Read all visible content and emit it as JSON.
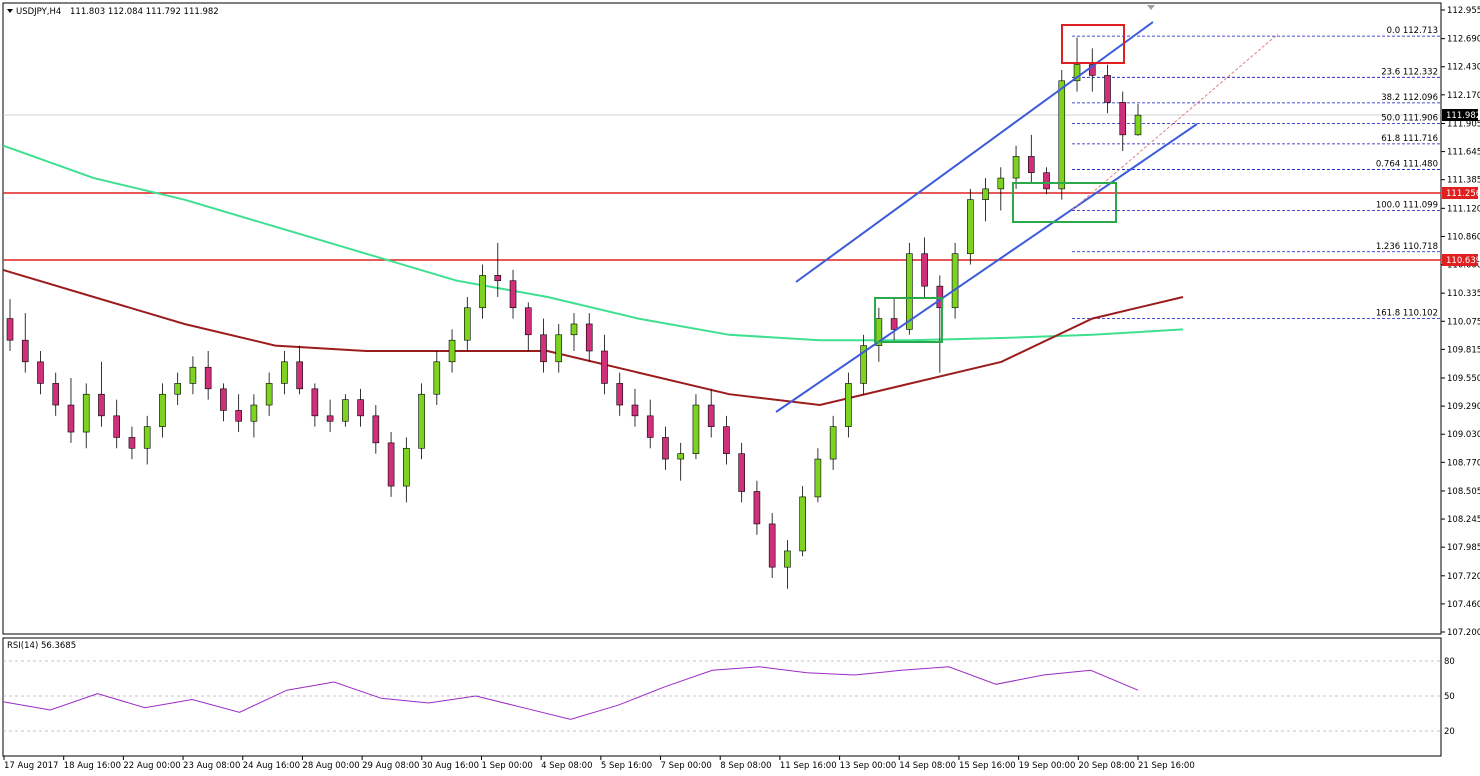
{
  "header": {
    "symbol": "USDJPY,H4",
    "ohlc": "111.803 112.084 111.792 111.982"
  },
  "rsi": {
    "label": "RSI(14) 56.3685",
    "levels": [
      20,
      50,
      80
    ],
    "tick_labels": [
      "80",
      "50",
      "20"
    ]
  },
  "price_scale": {
    "ticks": [
      "112.955",
      "112.690",
      "112.430",
      "112.170",
      "111.905",
      "111.645",
      "111.385",
      "111.120",
      "110.860",
      "110.600",
      "110.335",
      "110.075",
      "109.815",
      "109.550",
      "109.290",
      "109.030",
      "108.770",
      "108.505",
      "108.245",
      "107.985",
      "107.720",
      "107.460",
      "107.200"
    ],
    "current_price": "111.982",
    "level_labels": [
      "111.256",
      "110.639"
    ]
  },
  "time_labels": [
    "17 Aug 2017",
    "18 Aug 16:00",
    "22 Aug 00:00",
    "23 Aug 08:00",
    "24 Aug 16:00",
    "28 Aug 00:00",
    "29 Aug 08:00",
    "30 Aug 16:00",
    "1 Sep 00:00",
    "4 Sep 08:00",
    "5 Sep 16:00",
    "7 Sep 00:00",
    "8 Sep 08:00",
    "11 Sep 16:00",
    "13 Sep 00:00",
    "14 Sep 08:00",
    "15 Sep 16:00",
    "19 Sep 00:00",
    "20 Sep 08:00",
    "21 Sep 16:00"
  ],
  "fibonacci": [
    {
      "label": "0.0 112.713",
      "price": 112.713
    },
    {
      "label": "23.6 112.332",
      "price": 112.332
    },
    {
      "label": "38.2 112.096",
      "price": 112.096
    },
    {
      "label": "50.0 111.906",
      "price": 111.906
    },
    {
      "label": "61.8 111.716",
      "price": 111.716
    },
    {
      "label": "0.764 111.480",
      "price": 111.48
    },
    {
      "label": "100.0 111.099",
      "price": 111.099
    },
    {
      "label": "1.236 110.718",
      "price": 110.718
    },
    {
      "label": "161.8 110.102",
      "price": 110.102
    }
  ],
  "colors": {
    "bull": "#7ed321",
    "bear": "#d0307a",
    "ma_fast": "#9b1c1c",
    "ma_slow": "#3ee08f",
    "channel": "#3b5bdb",
    "horizontal_level": "#e02020",
    "fib": "#1010c0",
    "rsi_line": "#9b2bc4",
    "highlight_red": "#e02020",
    "highlight_green": "#2aa84a"
  },
  "chart_data": {
    "type": "candlestick",
    "symbol": "USDJPY",
    "timeframe": "H4",
    "ylim": [
      107.2,
      112.955
    ],
    "horizontal_levels": [
      111.256,
      110.639
    ],
    "candles": [
      [
        110.1,
        110.28,
        109.8,
        109.9
      ],
      [
        109.9,
        110.15,
        109.6,
        109.7
      ],
      [
        109.7,
        109.8,
        109.4,
        109.5
      ],
      [
        109.5,
        109.6,
        109.2,
        109.3
      ],
      [
        109.3,
        109.55,
        108.95,
        109.05
      ],
      [
        109.05,
        109.5,
        108.9,
        109.4
      ],
      [
        109.4,
        109.7,
        109.1,
        109.2
      ],
      [
        109.2,
        109.35,
        108.9,
        109.0
      ],
      [
        109.0,
        109.1,
        108.8,
        108.9
      ],
      [
        108.9,
        109.2,
        108.75,
        109.1
      ],
      [
        109.1,
        109.5,
        109.0,
        109.4
      ],
      [
        109.4,
        109.6,
        109.3,
        109.5
      ],
      [
        109.5,
        109.75,
        109.4,
        109.65
      ],
      [
        109.65,
        109.8,
        109.35,
        109.45
      ],
      [
        109.45,
        109.5,
        109.15,
        109.25
      ],
      [
        109.25,
        109.4,
        109.05,
        109.15
      ],
      [
        109.15,
        109.4,
        109.0,
        109.3
      ],
      [
        109.3,
        109.6,
        109.2,
        109.5
      ],
      [
        109.5,
        109.8,
        109.4,
        109.7
      ],
      [
        109.7,
        109.85,
        109.4,
        109.45
      ],
      [
        109.45,
        109.5,
        109.1,
        109.2
      ],
      [
        109.2,
        109.35,
        109.05,
        109.15
      ],
      [
        109.15,
        109.4,
        109.1,
        109.35
      ],
      [
        109.35,
        109.45,
        109.1,
        109.2
      ],
      [
        109.2,
        109.3,
        108.85,
        108.95
      ],
      [
        108.95,
        109.05,
        108.45,
        108.55
      ],
      [
        108.55,
        109.0,
        108.4,
        108.9
      ],
      [
        108.9,
        109.5,
        108.8,
        109.4
      ],
      [
        109.4,
        109.8,
        109.3,
        109.7
      ],
      [
        109.7,
        110.0,
        109.6,
        109.9
      ],
      [
        109.9,
        110.3,
        109.8,
        110.2
      ],
      [
        110.2,
        110.6,
        110.1,
        110.5
      ],
      [
        110.5,
        110.8,
        110.3,
        110.45
      ],
      [
        110.45,
        110.55,
        110.1,
        110.2
      ],
      [
        110.2,
        110.25,
        109.8,
        109.95
      ],
      [
        109.95,
        110.1,
        109.6,
        109.7
      ],
      [
        109.7,
        110.05,
        109.6,
        109.95
      ],
      [
        109.95,
        110.15,
        109.8,
        110.05
      ],
      [
        110.05,
        110.15,
        109.7,
        109.8
      ],
      [
        109.8,
        109.95,
        109.4,
        109.5
      ],
      [
        109.5,
        109.6,
        109.2,
        109.3
      ],
      [
        109.3,
        109.45,
        109.1,
        109.2
      ],
      [
        109.2,
        109.35,
        108.9,
        109.0
      ],
      [
        109.0,
        109.1,
        108.7,
        108.8
      ],
      [
        108.8,
        108.95,
        108.6,
        108.85
      ],
      [
        108.85,
        109.4,
        108.8,
        109.3
      ],
      [
        109.3,
        109.45,
        109.0,
        109.1
      ],
      [
        109.1,
        109.2,
        108.75,
        108.85
      ],
      [
        108.85,
        108.95,
        108.4,
        108.5
      ],
      [
        108.5,
        108.6,
        108.1,
        108.2
      ],
      [
        108.2,
        108.3,
        107.7,
        107.8
      ],
      [
        107.8,
        108.05,
        107.6,
        107.95
      ],
      [
        107.95,
        108.55,
        107.9,
        108.45
      ],
      [
        108.45,
        108.9,
        108.4,
        108.8
      ],
      [
        108.8,
        109.2,
        108.7,
        109.1
      ],
      [
        109.1,
        109.6,
        109.0,
        109.5
      ],
      [
        109.5,
        109.95,
        109.4,
        109.85
      ],
      [
        109.85,
        110.2,
        109.7,
        110.1
      ],
      [
        110.1,
        110.3,
        109.9,
        110.0
      ],
      [
        110.0,
        110.8,
        109.95,
        110.7
      ],
      [
        110.7,
        110.85,
        110.3,
        110.4
      ],
      [
        110.4,
        110.5,
        109.6,
        110.2
      ],
      [
        110.2,
        110.8,
        110.1,
        110.7
      ],
      [
        110.7,
        111.3,
        110.6,
        111.2
      ],
      [
        111.2,
        111.4,
        111.0,
        111.3
      ],
      [
        111.3,
        111.5,
        111.1,
        111.4
      ],
      [
        111.4,
        111.7,
        111.3,
        111.6
      ],
      [
        111.6,
        111.8,
        111.35,
        111.45
      ],
      [
        111.45,
        111.5,
        111.25,
        111.3
      ],
      [
        111.3,
        112.4,
        111.2,
        112.3
      ],
      [
        112.3,
        112.7,
        112.2,
        112.45
      ],
      [
        112.45,
        112.6,
        112.2,
        112.35
      ],
      [
        112.35,
        112.45,
        112.0,
        112.1
      ],
      [
        112.1,
        112.2,
        111.65,
        111.8
      ],
      [
        111.8,
        112.084,
        111.792,
        111.982
      ]
    ],
    "ma_fast": [
      110.55,
      110.3,
      110.05,
      109.85,
      109.8,
      109.8,
      109.8,
      109.6,
      109.4,
      109.3,
      109.5,
      109.7,
      110.1,
      110.3
    ],
    "ma_slow": [
      111.7,
      111.4,
      111.2,
      110.95,
      110.7,
      110.45,
      110.3,
      110.1,
      109.95,
      109.9,
      109.9,
      109.92,
      109.95,
      110.0
    ],
    "rsi": [
      45,
      38,
      52,
      40,
      47,
      36,
      55,
      62,
      48,
      44,
      50,
      40,
      30,
      42,
      58,
      72,
      75,
      70,
      68,
      72,
      75,
      60,
      68,
      72,
      55
    ]
  }
}
